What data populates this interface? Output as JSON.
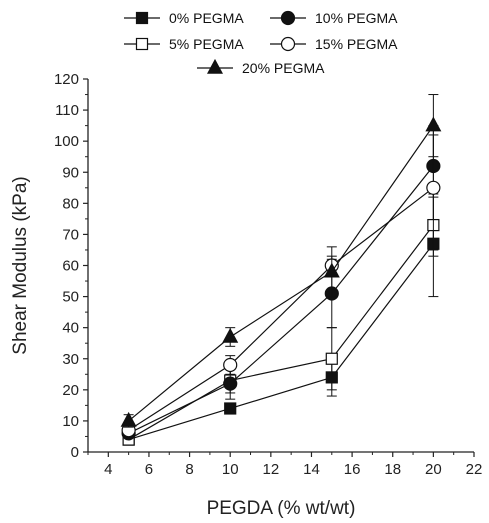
{
  "chart_data": {
    "type": "line",
    "xlabel": "PEGDA (% wt/wt)",
    "ylabel": "Shear Modulus (kPa)",
    "xlim": [
      3,
      22
    ],
    "ylim": [
      0,
      120
    ],
    "xticks": [
      4,
      6,
      8,
      10,
      12,
      14,
      16,
      18,
      20,
      22
    ],
    "yticks": [
      0,
      10,
      20,
      30,
      40,
      50,
      60,
      70,
      80,
      90,
      100,
      110,
      120
    ],
    "grid": false,
    "legend_position": "top",
    "series": [
      {
        "name": "0% PEGMA",
        "marker": "filled-square",
        "x": [
          5,
          10,
          15,
          20
        ],
        "y": [
          4,
          14,
          24,
          67
        ],
        "err": [
          1,
          1,
          6,
          17
        ]
      },
      {
        "name": "5% PEGMA",
        "marker": "open-square",
        "x": [
          5,
          10,
          15,
          20
        ],
        "y": [
          4,
          23,
          30,
          73
        ],
        "err": [
          1,
          4,
          10,
          10
        ]
      },
      {
        "name": "10% PEGMA",
        "marker": "filled-circle",
        "x": [
          5,
          10,
          15,
          20
        ],
        "y": [
          6,
          22,
          51,
          92
        ],
        "err": [
          1,
          5,
          11,
          10
        ]
      },
      {
        "name": "15% PEGMA",
        "marker": "open-circle",
        "x": [
          5,
          10,
          15,
          20
        ],
        "y": [
          7,
          28,
          60,
          85
        ],
        "err": [
          1,
          3,
          3,
          20
        ]
      },
      {
        "name": "20% PEGMA",
        "marker": "filled-triangle",
        "x": [
          5,
          10,
          15,
          20
        ],
        "y": [
          10,
          37,
          58,
          105
        ],
        "err": [
          2,
          3,
          8,
          10
        ]
      }
    ]
  }
}
